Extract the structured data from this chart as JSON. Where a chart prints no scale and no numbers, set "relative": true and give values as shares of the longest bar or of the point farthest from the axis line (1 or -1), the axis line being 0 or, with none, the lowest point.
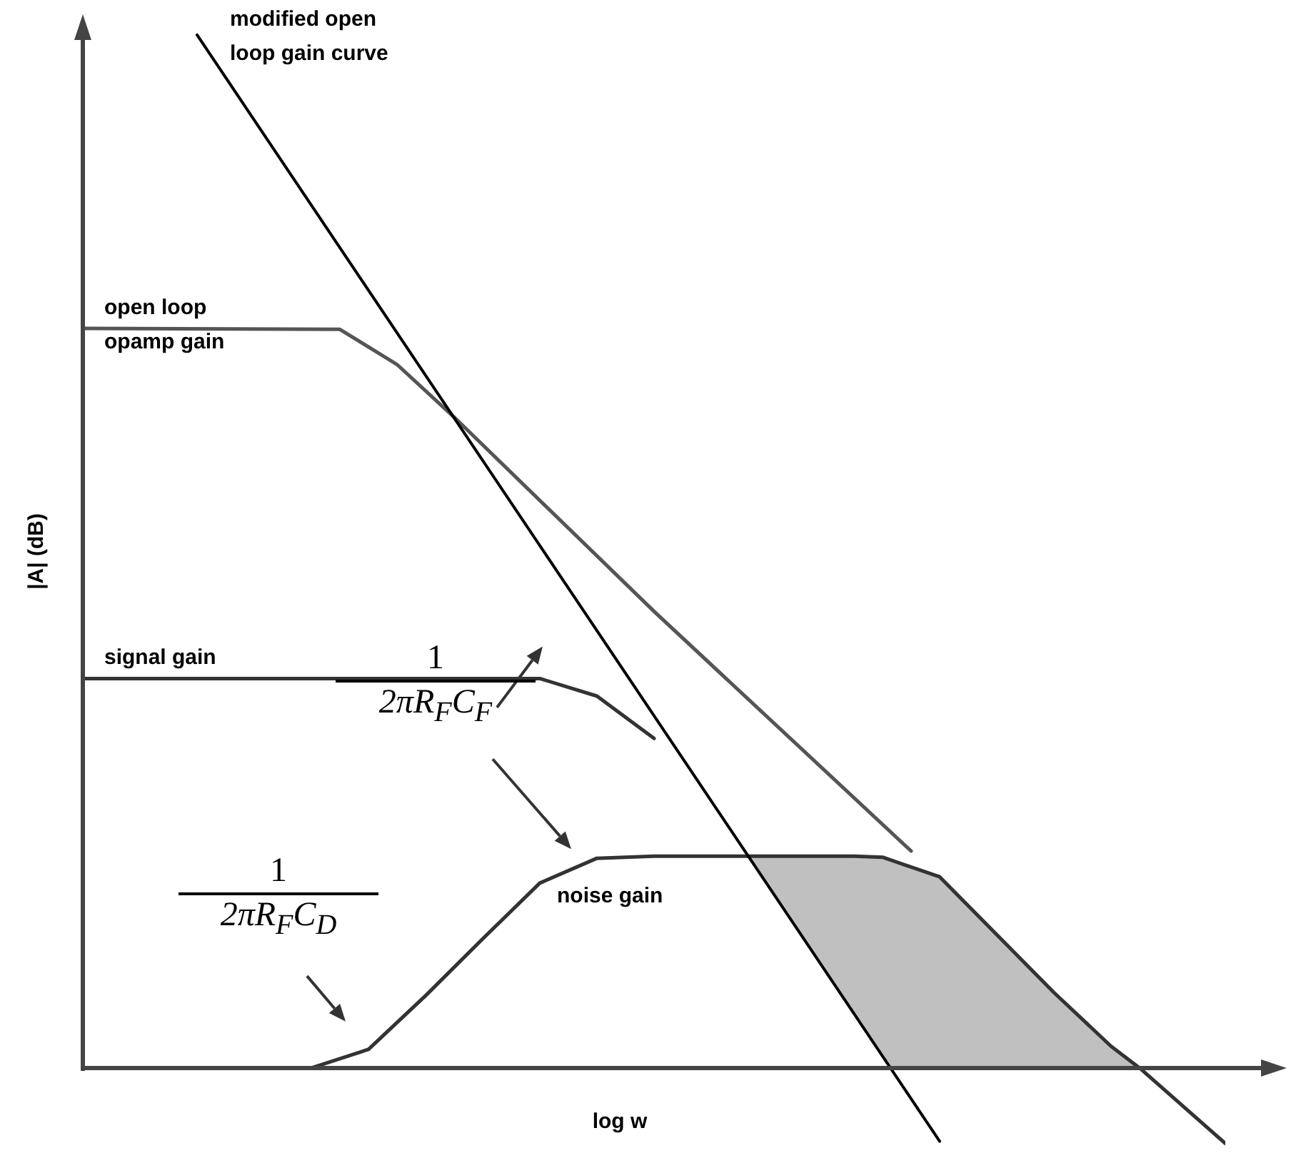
{
  "chart_data": {
    "type": "line",
    "relative": true,
    "xlabel": "log w",
    "ylabel": "|A| (dB)",
    "categories": [
      null,
      null,
      null,
      null,
      null,
      null,
      null,
      null,
      null,
      null,
      null,
      null,
      null,
      null,
      null,
      null,
      null,
      null,
      null,
      null,
      null,
      null,
      null,
      null,
      null,
      null,
      null,
      null,
      null,
      null,
      null,
      null,
      null,
      null,
      null,
      null,
      null,
      null,
      null,
      null,
      null
    ],
    "series": [
      {
        "type": "area",
        "color": "#c0c0c0",
        "values": [
          null,
          null,
          null,
          null,
          null,
          null,
          null,
          null,
          null,
          null,
          null,
          null,
          null,
          null,
          null,
          null,
          null,
          null,
          null,
          null,
          0.205,
          null,
          null,
          null,
          null,
          null,
          null,
          0.205,
          0.204,
          null,
          0.185,
          null,
          0.129,
          null,
          0.073,
          null,
          0.021,
          0,
          null,
          null,
          null
        ]
      },
      {
        "name": "open loop opamp gain",
        "color": "#555555",
        "values": [
          0.716,
          null,
          null,
          null,
          null,
          null,
          null,
          null,
          null,
          0.715,
          null,
          0.681,
          null,
          0.63,
          null,
          null,
          null,
          null,
          null,
          null,
          0.442,
          null,
          null,
          null,
          null,
          null,
          null,
          null,
          null,
          0.21,
          null,
          null,
          null,
          null,
          null,
          null,
          null,
          null,
          null,
          null,
          null
        ]
      },
      {
        "name": "signal gain",
        "color": "#333333",
        "values": [
          0.377,
          null,
          null,
          null,
          null,
          null,
          null,
          null,
          null,
          null,
          null,
          null,
          null,
          null,
          null,
          null,
          0.377,
          null,
          0.36,
          null,
          0.319,
          null,
          null,
          null,
          null,
          null,
          null,
          null,
          null,
          null,
          null,
          null,
          null,
          null,
          null,
          null,
          null,
          null,
          null,
          null,
          null
        ]
      },
      {
        "name": "noise gain",
        "color": "#333333",
        "values": [
          0,
          null,
          null,
          null,
          null,
          null,
          null,
          null,
          0,
          null,
          0.018,
          null,
          0.07,
          null,
          0.125,
          null,
          0.179,
          null,
          0.203,
          null,
          0.205,
          null,
          null,
          null,
          null,
          null,
          null,
          0.205,
          0.204,
          null,
          0.185,
          null,
          0.129,
          null,
          0.073,
          null,
          0.021,
          0,
          null,
          null,
          -0.073
        ]
      },
      {
        "name": "modified open loop gain curve",
        "color": "#000000",
        "values": [
          null,
          null,
          null,
          null,
          1,
          null,
          null,
          null,
          null,
          null,
          null,
          null,
          null,
          null,
          null,
          null,
          null,
          null,
          null,
          null,
          null,
          null,
          null,
          null,
          null,
          null,
          null,
          null,
          null,
          null,
          -0.071,
          null,
          null,
          null,
          null,
          null,
          null,
          null,
          null,
          null,
          null
        ]
      }
    ],
    "annotations": [
      "1",
      "2πR$_{F}$C$_{F}$",
      "1",
      "2πR$_{F}$C$_{D}$"
    ]
  }
}
